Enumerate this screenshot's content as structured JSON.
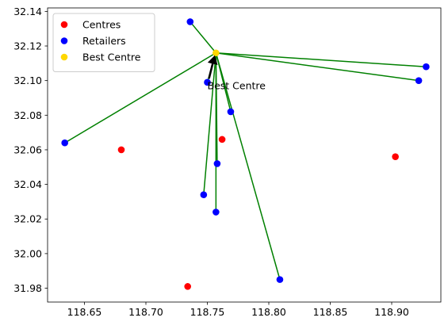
{
  "chart_data": {
    "type": "scatter",
    "title": "",
    "xlabel": "",
    "ylabel": "",
    "xlim": [
      118.62,
      118.94
    ],
    "ylim": [
      31.972,
      32.142
    ],
    "xticks": [
      118.65,
      118.7,
      118.75,
      118.8,
      118.85,
      118.9
    ],
    "xtick_labels": [
      "118.65",
      "118.70",
      "118.75",
      "118.80",
      "118.85",
      "118.90"
    ],
    "yticks": [
      31.98,
      32.0,
      32.02,
      32.04,
      32.06,
      32.08,
      32.1,
      32.12,
      32.14
    ],
    "ytick_labels": [
      "31.98",
      "32.00",
      "32.02",
      "32.04",
      "32.06",
      "32.08",
      "32.10",
      "32.12",
      "32.14"
    ],
    "grid": false,
    "legend_position": "upper-left",
    "series": [
      {
        "name": "Centres",
        "color": "#ff0000",
        "points": [
          [
            118.68,
            32.06
          ],
          [
            118.734,
            31.981
          ],
          [
            118.762,
            32.066
          ],
          [
            118.903,
            32.056
          ]
        ]
      },
      {
        "name": "Retailers",
        "color": "#0000ff",
        "points": [
          [
            118.634,
            32.064
          ],
          [
            118.736,
            32.134
          ],
          [
            118.75,
            32.099
          ],
          [
            118.769,
            32.082
          ],
          [
            118.758,
            32.052
          ],
          [
            118.747,
            32.034
          ],
          [
            118.757,
            32.024
          ],
          [
            118.809,
            31.985
          ],
          [
            118.922,
            32.1
          ],
          [
            118.928,
            32.108
          ]
        ]
      },
      {
        "name": "Best Centre",
        "color": "#ffd700",
        "points": [
          [
            118.757,
            32.116
          ]
        ]
      }
    ],
    "connection_lines": {
      "color": "#008000",
      "from": [
        118.757,
        32.116
      ],
      "to_series": "Retailers"
    },
    "annotation": {
      "text": "Best Centre",
      "point": [
        118.757,
        32.116
      ],
      "text_position": [
        118.75,
        32.097
      ],
      "arrow_color": "#000000"
    }
  }
}
